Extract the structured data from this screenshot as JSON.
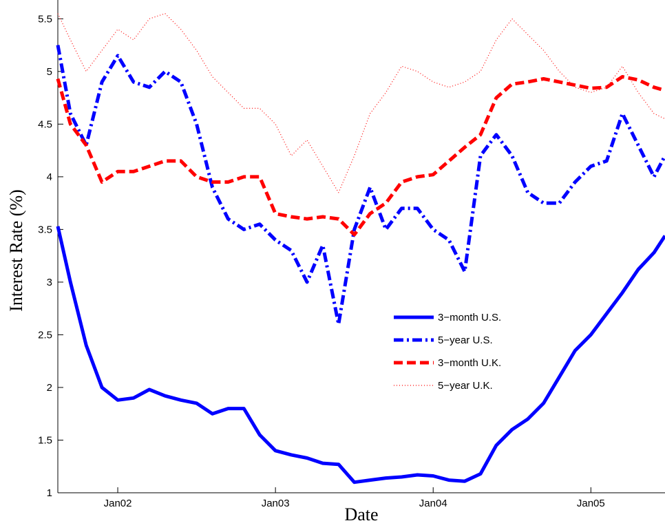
{
  "chart_data": {
    "type": "line",
    "x_label": "Date",
    "y_label": "Interest Rate (%)",
    "x": [
      2001.62,
      2001.7,
      2001.8,
      2001.9,
      2002.0,
      2002.1,
      2002.2,
      2002.3,
      2002.4,
      2002.5,
      2002.6,
      2002.7,
      2002.8,
      2002.9,
      2003.0,
      2003.1,
      2003.2,
      2003.3,
      2003.4,
      2003.5,
      2003.6,
      2003.7,
      2003.8,
      2003.9,
      2004.0,
      2004.1,
      2004.2,
      2004.3,
      2004.4,
      2004.5,
      2004.6,
      2004.7,
      2004.8,
      2004.9,
      2005.0,
      2005.1,
      2005.2,
      2005.3,
      2005.4,
      2005.47
    ],
    "series": [
      {
        "name": "3−month U.S.",
        "color": "#0000ff",
        "style": "solid",
        "values": [
          3.53,
          3.0,
          2.4,
          2.0,
          1.88,
          1.9,
          1.98,
          1.92,
          1.88,
          1.85,
          1.75,
          1.8,
          1.8,
          1.55,
          1.4,
          1.36,
          1.33,
          1.28,
          1.27,
          1.1,
          1.12,
          1.14,
          1.15,
          1.17,
          1.16,
          1.12,
          1.11,
          1.18,
          1.45,
          1.6,
          1.7,
          1.85,
          2.1,
          2.35,
          2.5,
          2.7,
          2.9,
          3.12,
          3.28,
          3.44
        ]
      },
      {
        "name": "5−year U.S.",
        "color": "#0000ff",
        "style": "dashdot",
        "values": [
          5.25,
          4.6,
          4.3,
          4.9,
          5.15,
          4.9,
          4.85,
          5.0,
          4.9,
          4.5,
          3.9,
          3.6,
          3.5,
          3.55,
          3.4,
          3.3,
          3.0,
          3.35,
          2.6,
          3.5,
          3.9,
          3.5,
          3.7,
          3.7,
          3.5,
          3.4,
          3.1,
          4.2,
          4.4,
          4.2,
          3.85,
          3.75,
          3.75,
          3.95,
          4.1,
          4.15,
          4.6,
          4.3,
          4.0,
          4.2
        ]
      },
      {
        "name": "3−month U.K.",
        "color": "#ff0000",
        "style": "dashed",
        "values": [
          4.93,
          4.5,
          4.3,
          3.95,
          4.05,
          4.05,
          4.1,
          4.15,
          4.15,
          4.0,
          3.95,
          3.95,
          4.0,
          4.0,
          3.65,
          3.62,
          3.6,
          3.62,
          3.6,
          3.45,
          3.65,
          3.75,
          3.95,
          4.0,
          4.02,
          4.15,
          4.28,
          4.4,
          4.75,
          4.88,
          4.9,
          4.93,
          4.9,
          4.87,
          4.84,
          4.85,
          4.95,
          4.92,
          4.85,
          4.82
        ]
      },
      {
        "name": "5−year U.K.",
        "color": "#ff0000",
        "style": "dotted",
        "values": [
          5.55,
          5.3,
          5.0,
          5.2,
          5.4,
          5.3,
          5.5,
          5.55,
          5.4,
          5.2,
          4.95,
          4.8,
          4.65,
          4.65,
          4.5,
          4.2,
          4.35,
          4.1,
          3.85,
          4.2,
          4.6,
          4.8,
          5.05,
          5.0,
          4.9,
          4.85,
          4.9,
          5.0,
          5.3,
          5.5,
          5.35,
          5.2,
          5.0,
          4.85,
          4.8,
          4.85,
          5.05,
          4.8,
          4.6,
          4.55
        ]
      }
    ],
    "xlim": [
      2001.62,
      2005.47
    ],
    "xticks": [
      {
        "value": 2002,
        "label": "Jan02"
      },
      {
        "value": 2003,
        "label": "Jan03"
      },
      {
        "value": 2004,
        "label": "Jan04"
      },
      {
        "value": 2005,
        "label": "Jan05"
      }
    ],
    "ylim": [
      1,
      5.6
    ],
    "yticks": [
      1,
      1.5,
      2,
      2.5,
      3,
      3.5,
      4,
      4.5,
      5,
      5.5
    ],
    "grid": false
  }
}
